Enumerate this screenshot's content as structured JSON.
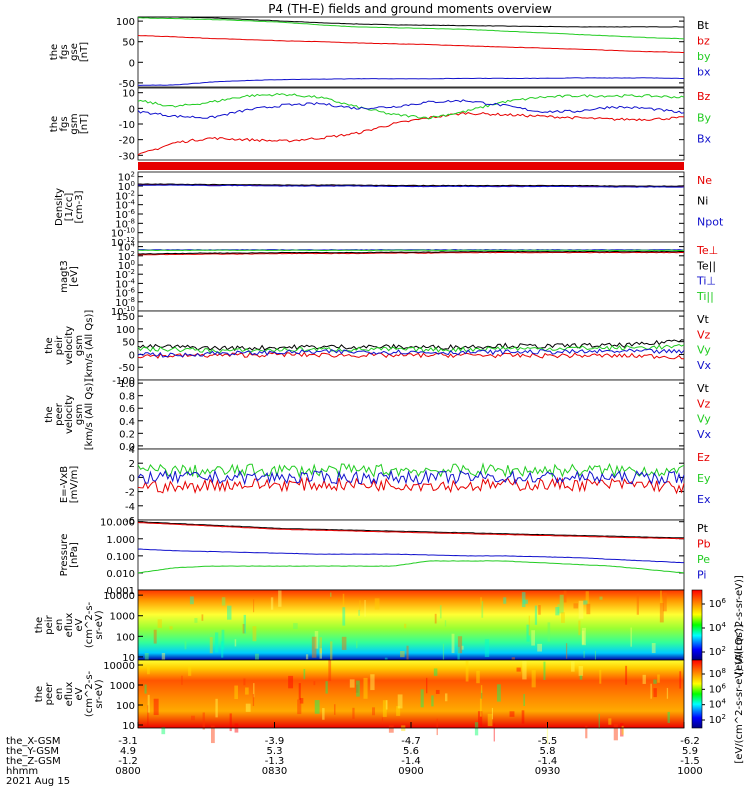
{
  "title": "P4 (TH-E) fields and ground moments overview",
  "colors": {
    "black": "#000000",
    "red": "#e60000",
    "green": "#22cc22",
    "blue": "#1111cc",
    "orange": "#ff7f00"
  },
  "chart_data": [
    {
      "type": "line",
      "id": "fgs",
      "ylabel": [
        "the",
        "fgs",
        "gse",
        "[nT]"
      ],
      "ylim": [
        -60,
        110
      ],
      "yticks": [
        "100",
        "50",
        "0",
        "-50"
      ],
      "ytick_values": [
        100,
        50,
        0,
        -50
      ],
      "series": [
        {
          "name": "Bt",
          "color": "black",
          "values": [
            110,
            110,
            108,
            104,
            100,
            96,
            93,
            91,
            90,
            89,
            88,
            87,
            86,
            86,
            86,
            86
          ]
        },
        {
          "name": "bz",
          "color": "red",
          "values": [
            65,
            62,
            58,
            55,
            52,
            50,
            47,
            45,
            43,
            40,
            37,
            35,
            32,
            29,
            26,
            24
          ]
        },
        {
          "name": "by",
          "color": "green",
          "values": [
            108,
            106,
            104,
            101,
            97,
            91,
            86,
            84,
            82,
            80,
            76,
            72,
            68,
            64,
            60,
            57
          ]
        },
        {
          "name": "bx",
          "color": "blue",
          "values": [
            -56,
            -55,
            -48,
            -44,
            -42,
            -41,
            -40,
            -40,
            -40,
            -39,
            -39,
            -39,
            -38,
            -38,
            -38,
            -39
          ]
        }
      ]
    },
    {
      "type": "line",
      "id": "fgs_gsm",
      "ylabel": [
        "the",
        "fgs",
        "gsm",
        "[nT]"
      ],
      "ylim": [
        -33,
        13
      ],
      "yticks": [
        "10",
        "0",
        "-10",
        "-20",
        "-30"
      ],
      "ytick_values": [
        10,
        0,
        -10,
        -20,
        -30
      ],
      "series": [
        {
          "name": "Bz",
          "color": "red",
          "values": [
            -30,
            -22,
            -19,
            -20,
            -21,
            -19,
            -16,
            -10,
            -6,
            -3,
            -4,
            -5,
            -6,
            -7,
            -7,
            -6
          ]
        },
        {
          "name": "By",
          "color": "green",
          "values": [
            5,
            1,
            4,
            8,
            9,
            7,
            1,
            -4,
            -6,
            -2,
            4,
            7,
            8,
            8,
            8,
            7
          ]
        },
        {
          "name": "Bx",
          "color": "blue",
          "values": [
            -2,
            -5,
            -6,
            -1,
            2,
            3,
            0,
            1,
            4,
            5,
            2,
            -2,
            -2,
            1,
            0,
            -3
          ]
        }
      ]
    },
    {
      "type": "line",
      "id": "density",
      "ylabel": [
        "Density",
        "[1/cc]",
        "[cm-3]"
      ],
      "log": true,
      "ylim": [
        -12,
        3
      ],
      "yticks": [
        "10^2",
        "10^0",
        "10^-2",
        "10^-4",
        "10^-6",
        "10^-8",
        "10^-10",
        "10^-12"
      ],
      "ytick_values": [
        2,
        0,
        -2,
        -4,
        -6,
        -8,
        -10,
        -12
      ],
      "series": [
        {
          "name": "Ne",
          "color": "red",
          "values": [
            0.3,
            0.3,
            0.2,
            0.2,
            0.1,
            0.1,
            0.1,
            0.0,
            0.0,
            0.0,
            0.0,
            0.0,
            0.0,
            -0.1,
            -0.1,
            -0.1
          ]
        },
        {
          "name": "Ni",
          "color": "black",
          "values": [
            0.4,
            0.4,
            0.3,
            0.3,
            0.2,
            0.2,
            0.2,
            0.1,
            0.1,
            0.1,
            0.1,
            0.1,
            0.1,
            0.0,
            0.0,
            0.0
          ]
        },
        {
          "name": "Npot",
          "color": "blue",
          "values": [
            0.2,
            0.2,
            0.1,
            0.1,
            0.0,
            0.0,
            0.0,
            -0.1,
            -0.1,
            -0.1,
            -0.1,
            -0.1,
            -0.1,
            -0.2,
            -0.2,
            -0.2
          ]
        }
      ]
    },
    {
      "type": "line",
      "id": "temperature",
      "ylabel": [
        "magt3",
        "[eV]"
      ],
      "log": true,
      "ylim": [
        -10,
        5
      ],
      "yticks": [
        "10^4",
        "10^2",
        "10^0",
        "10^-2",
        "10^-4",
        "10^-6",
        "10^-8",
        "10^-10"
      ],
      "ytick_values": [
        4,
        2,
        0,
        -2,
        -4,
        -6,
        -8,
        -10
      ],
      "series": [
        {
          "name": "Te⊥",
          "color": "red",
          "values": [
            2.2,
            2.3,
            2.4,
            2.4,
            2.5,
            2.5,
            2.5,
            2.6,
            2.6,
            2.7,
            2.7,
            2.7,
            2.7,
            2.7,
            2.7,
            2.7
          ]
        },
        {
          "name": "Te||",
          "color": "black",
          "values": [
            2.4,
            2.5,
            2.6,
            2.6,
            2.7,
            2.7,
            2.7,
            2.8,
            2.8,
            2.9,
            2.9,
            2.9,
            2.9,
            2.9,
            2.9,
            2.9
          ]
        },
        {
          "name": "Ti⊥",
          "color": "blue",
          "values": [
            3.3,
            3.3,
            3.3,
            3.3,
            3.3,
            3.3,
            3.3,
            3.3,
            3.3,
            3.3,
            3.3,
            3.3,
            3.3,
            3.3,
            3.3,
            3.3
          ]
        },
        {
          "name": "Ti||",
          "color": "green",
          "values": [
            3.2,
            3.2,
            3.2,
            3.2,
            3.2,
            3.2,
            3.2,
            3.2,
            3.2,
            3.2,
            3.2,
            3.2,
            3.2,
            3.2,
            3.2,
            3.2
          ]
        }
      ]
    },
    {
      "type": "line",
      "id": "peir_velocity",
      "ylabel": [
        "the",
        "peir",
        "velocity",
        "gsm",
        "[km/s (All Qs)]"
      ],
      "ylim": [
        -100,
        170
      ],
      "yticks": [
        "150",
        "100",
        "50",
        "0",
        "-50",
        "-100"
      ],
      "ytick_values": [
        150,
        100,
        50,
        0,
        -50,
        -100
      ],
      "series": [
        {
          "name": "Vt",
          "color": "black",
          "values": [
            30,
            30,
            25,
            25,
            28,
            30,
            30,
            30,
            28,
            30,
            35,
            32,
            35,
            35,
            40,
            60
          ]
        },
        {
          "name": "Vz",
          "color": "red",
          "values": [
            -5,
            -5,
            -3,
            -2,
            0,
            -2,
            -3,
            -4,
            -3,
            -2,
            -4,
            -5,
            -4,
            -5,
            -6,
            -10
          ]
        },
        {
          "name": "Vy",
          "color": "green",
          "values": [
            20,
            20,
            15,
            15,
            18,
            20,
            20,
            20,
            18,
            20,
            25,
            22,
            25,
            25,
            28,
            30
          ]
        },
        {
          "name": "Vx",
          "color": "blue",
          "values": [
            5,
            -5,
            5,
            5,
            8,
            10,
            10,
            10,
            8,
            8,
            10,
            10,
            10,
            12,
            12,
            10
          ]
        }
      ]
    },
    {
      "type": "line",
      "id": "peer_velocity",
      "ylabel": [
        "the",
        "peer",
        "velocity",
        "gsm",
        "[km/s (All Qs)]"
      ],
      "ylim": [
        -0.05,
        1.05
      ],
      "yticks": [
        "1.0",
        "0.8",
        "0.6",
        "0.4",
        "0.2",
        "0.0"
      ],
      "ytick_values": [
        1.0,
        0.8,
        0.6,
        0.4,
        0.2,
        0.0
      ],
      "legend": [
        "Vt",
        "Vz",
        "Vy",
        "Vx"
      ],
      "series": []
    },
    {
      "type": "line",
      "id": "efield",
      "ylabel": [
        "E=-VxB",
        "[mV/m]"
      ],
      "ylim": [
        -6,
        4
      ],
      "yticks": [
        "4",
        "2",
        "0",
        "-2",
        "-4",
        "-6"
      ],
      "ytick_values": [
        4,
        2,
        0,
        -2,
        -4,
        -6
      ],
      "series": [
        {
          "name": "Ez",
          "color": "red",
          "values": [
            -1,
            -1.5,
            -1,
            -1,
            -1,
            -1,
            -1,
            -1,
            -1,
            -1.2,
            -1,
            -1,
            -1,
            -1,
            -1,
            -1.5
          ]
        },
        {
          "name": "Ey",
          "color": "green",
          "values": [
            1,
            1,
            0.8,
            1,
            1,
            1,
            1,
            1,
            1,
            1,
            1,
            1,
            1,
            1,
            1,
            0.8
          ]
        },
        {
          "name": "Ex",
          "color": "blue",
          "values": [
            0,
            0,
            0,
            0,
            0,
            0,
            0,
            0,
            0,
            0,
            0,
            0,
            0,
            0,
            0,
            0
          ]
        }
      ]
    },
    {
      "type": "line",
      "id": "pressure",
      "ylabel": [
        "Pressure",
        "[nPa]"
      ],
      "log": true,
      "ylim": [
        -3,
        1.1
      ],
      "yticks": [
        "10.000",
        "1.000",
        "0.100",
        "0.010",
        "0.001"
      ],
      "ytick_values": [
        1,
        0,
        -1,
        -2,
        -3
      ],
      "series": [
        {
          "name": "Pt",
          "color": "black",
          "values": [
            1.0,
            0.9,
            0.8,
            0.7,
            0.6,
            0.55,
            0.5,
            0.45,
            0.4,
            0.35,
            0.3,
            0.25,
            0.2,
            0.15,
            0.1,
            0.05
          ]
        },
        {
          "name": "Pb",
          "color": "red",
          "values": [
            0.95,
            0.85,
            0.75,
            0.65,
            0.55,
            0.5,
            0.45,
            0.4,
            0.35,
            0.3,
            0.25,
            0.2,
            0.15,
            0.1,
            0.05,
            0.0
          ]
        },
        {
          "name": "Pe",
          "color": "green",
          "values": [
            -2.0,
            -1.7,
            -1.6,
            -1.6,
            -1.6,
            -1.6,
            -1.6,
            -1.6,
            -1.3,
            -1.3,
            -1.3,
            -1.4,
            -1.5,
            -1.6,
            -1.8,
            -2.0
          ]
        },
        {
          "name": "Pi",
          "color": "blue",
          "values": [
            -0.6,
            -0.7,
            -0.75,
            -0.8,
            -0.85,
            -0.9,
            -0.9,
            -0.9,
            -0.95,
            -1.0,
            -1.0,
            -1.05,
            -1.1,
            -1.2,
            -1.3,
            -1.4
          ]
        }
      ]
    },
    {
      "type": "heatmap",
      "id": "peir_eflux",
      "ylabel": [
        "the",
        "peir",
        "en",
        "eflux",
        "eV",
        "(cm^2-s-",
        "sr-eV)"
      ],
      "log": true,
      "yticks": [
        "10000",
        "1000",
        "100",
        "10"
      ],
      "ytick_values": [
        4,
        3,
        2,
        1
      ],
      "colorbar": {
        "ticks": [
          "10^6",
          "10^4",
          "10^2"
        ],
        "label": "[eV/(cm^2-s-sr-eV)]"
      }
    },
    {
      "type": "heatmap",
      "id": "peer_eflux",
      "ylabel": [
        "the",
        "peer",
        "en",
        "eflux",
        "eV",
        "(cm^2-s-",
        "sr-eV)"
      ],
      "log": true,
      "yticks": [
        "10000",
        "1000",
        "100",
        "10"
      ],
      "ytick_values": [
        4,
        3,
        2,
        1
      ],
      "colorbar": {
        "ticks": [
          "10^8",
          "10^6",
          "10^4",
          "10^2"
        ],
        "label": "[eV/(cm^2-s-sr-eV) (All Qs)]"
      }
    }
  ],
  "x_axis": {
    "row_labels": [
      "the_X-GSM",
      "the_Y-GSM",
      "the_Z-GSM",
      "hhmm",
      "2021 Aug 15"
    ],
    "ticks": [
      {
        "x_gsm": "-3.1",
        "y_gsm": "4.9",
        "z_gsm": "-1.2",
        "hhmm": "0800"
      },
      {
        "x_gsm": "-3.9",
        "y_gsm": "5.3",
        "z_gsm": "-1.3",
        "hhmm": "0830"
      },
      {
        "x_gsm": "-4.7",
        "y_gsm": "5.6",
        "z_gsm": "-1.4",
        "hhmm": "0900"
      },
      {
        "x_gsm": "-5.5",
        "y_gsm": "5.8",
        "z_gsm": "-1.4",
        "hhmm": "0930"
      },
      {
        "x_gsm": "-6.2",
        "y_gsm": "5.9",
        "z_gsm": "-1.5",
        "hhmm": "1000"
      }
    ]
  }
}
